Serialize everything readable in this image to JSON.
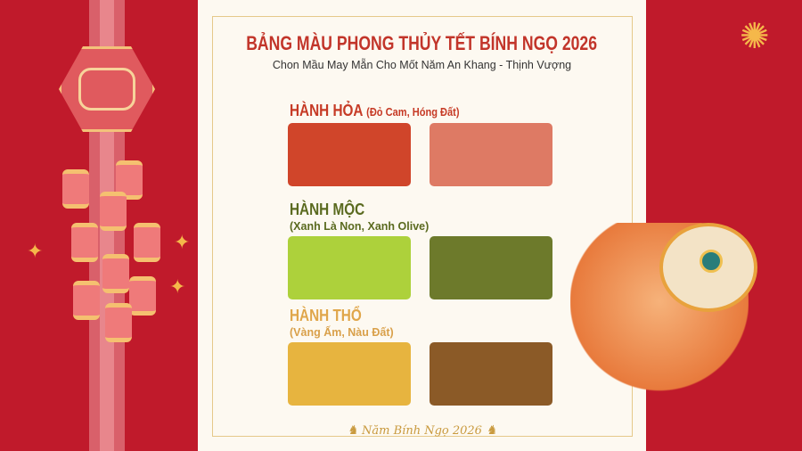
{
  "title": "BẢNG MÀU PHONG THỦY TẾT BÍNH NGỌ 2026",
  "subtitle": "Chon Mầu May Mẵn Cho Mốt Năm An Khang - Thịnh Vượng",
  "sections": [
    {
      "name": "HÀNH HỎA",
      "desc": "(Đỏ Cam, Hóng Đất)",
      "title_color": "#c63a25",
      "swatches": [
        "#d0452a",
        "#de7a64"
      ]
    },
    {
      "name": "HÀNH MỘC",
      "desc": "(Xanh Là Non, Xanh Olive)",
      "title_color": "#5a6a1f",
      "swatches": [
        "#add13b",
        "#6d7a2b"
      ]
    },
    {
      "name": "HÀNH THỔ",
      "desc": "(Vàng Ấm, Nàu Đất)",
      "title_color": "#e0a64a",
      "swatches": [
        "#e7b43f",
        "#8b5a27"
      ]
    }
  ],
  "footer": "Năm Bính Ngọ 2026",
  "icons": {
    "footer_left": "horse-icon",
    "footer_right": "horse-icon"
  },
  "background_color": "#c01a2b"
}
